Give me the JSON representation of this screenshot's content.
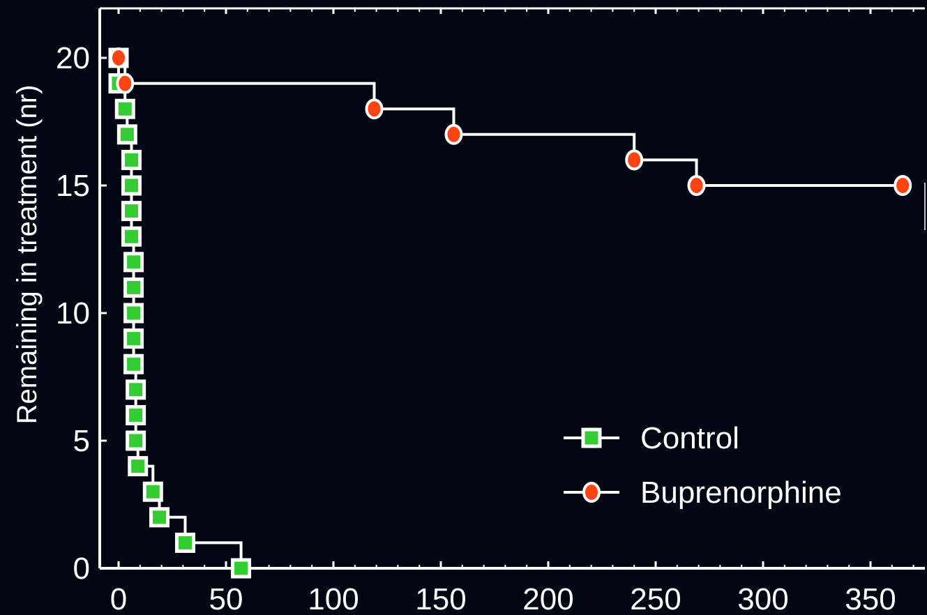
{
  "chart_data": {
    "type": "line",
    "title": "",
    "xlabel": "",
    "ylabel": "Remaining in treatment  (nr)",
    "xlim": [
      -8,
      375
    ],
    "ylim": [
      0,
      22
    ],
    "x_ticks": [
      0,
      50,
      100,
      150,
      200,
      250,
      300,
      350
    ],
    "y_ticks": [
      0,
      5,
      10,
      15,
      20
    ],
    "step": true,
    "grid": false,
    "legend_position": "lower-right",
    "background": "#020612",
    "series": [
      {
        "name": "Control",
        "marker": "square",
        "color": "#33cc33",
        "line_color": "#ffffff",
        "points": [
          [
            0,
            20
          ],
          [
            0,
            19
          ],
          [
            3,
            18
          ],
          [
            4,
            17
          ],
          [
            6,
            16
          ],
          [
            6,
            15
          ],
          [
            6,
            14
          ],
          [
            6,
            13
          ],
          [
            7,
            12
          ],
          [
            7,
            11
          ],
          [
            7,
            10
          ],
          [
            7,
            9
          ],
          [
            7,
            8
          ],
          [
            8,
            7
          ],
          [
            8,
            6
          ],
          [
            8,
            5
          ],
          [
            9,
            4
          ],
          [
            16,
            3
          ],
          [
            19,
            2
          ],
          [
            31,
            1
          ],
          [
            57,
            0
          ]
        ]
      },
      {
        "name": "Buprenorphine",
        "marker": "circle",
        "color": "#ff4411",
        "line_color": "#ffffff",
        "points": [
          [
            0,
            20
          ],
          [
            3,
            19
          ],
          [
            119,
            18
          ],
          [
            156,
            17
          ],
          [
            240,
            16
          ],
          [
            269,
            15
          ],
          [
            365,
            15
          ]
        ]
      }
    ]
  }
}
